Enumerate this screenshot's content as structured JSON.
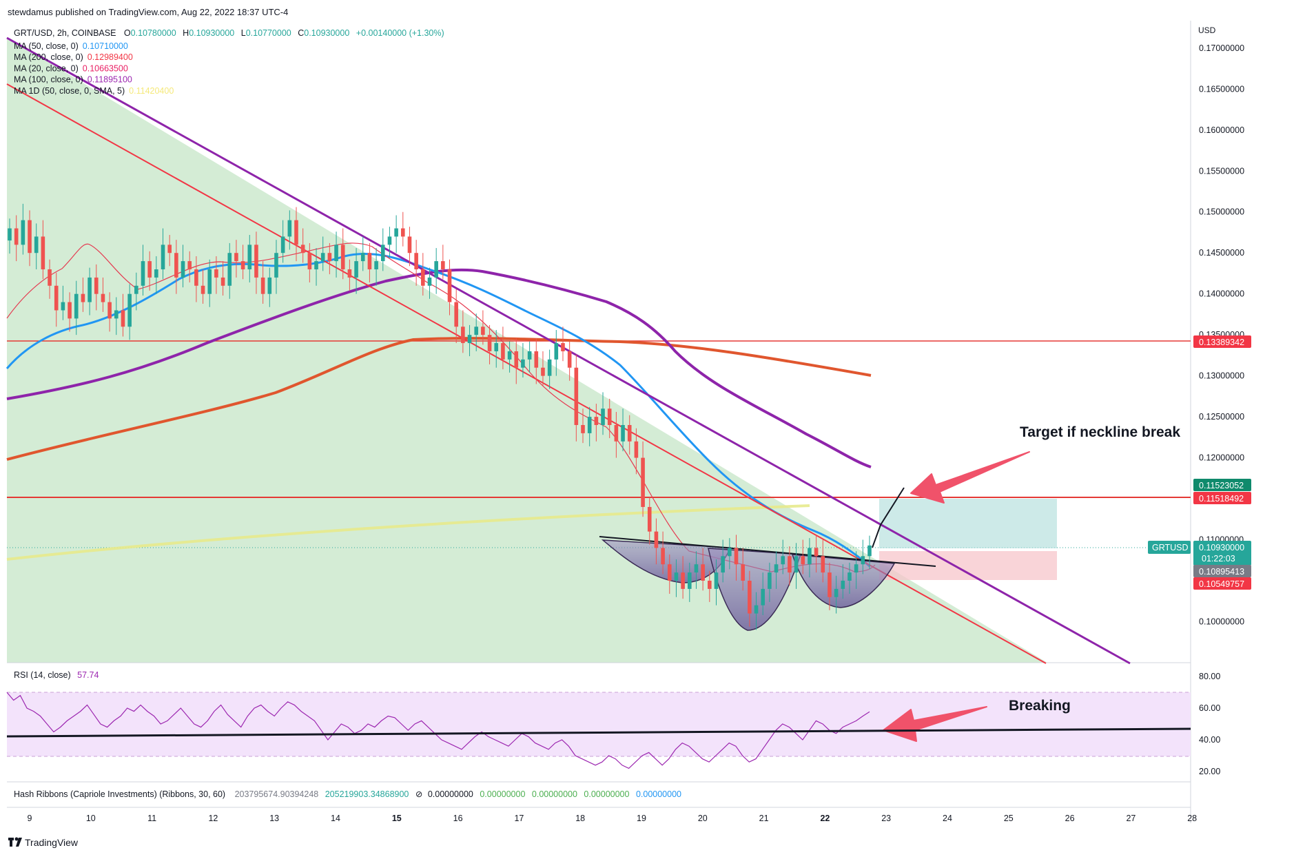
{
  "header": {
    "published": "stewdamus published on TradingView.com, Aug 22, 2022 18:37 UTC-4"
  },
  "symbol_line": {
    "symbol": "GRT/USD, 2h, COINBASE",
    "o_label": "O",
    "o_value": "0.10780000",
    "h_label": "H",
    "h_value": "0.10930000",
    "l_label": "L",
    "l_value": "0.10770000",
    "c_label": "C",
    "c_value": "0.10930000",
    "change": "+0.00140000 (+1.30%)"
  },
  "indicators": [
    {
      "label": "MA (50, close, 0)",
      "value": "0.10710000",
      "color": "#2196f3"
    },
    {
      "label": "MA (200, close, 0)",
      "value": "0.12989400",
      "color": "#f23645"
    },
    {
      "label": "MA (20, close, 0)",
      "value": "0.10663500",
      "color": "#e91e63"
    },
    {
      "label": "MA (100, close, 0)",
      "value": "0.11895100",
      "color": "#9c27b0"
    },
    {
      "label": "MA 1D (50, close, 0, SMA, 5)",
      "value": "0.11420400",
      "color": "#f5e97a"
    }
  ],
  "annotations": {
    "target": "Target if neckline break",
    "breaking": "Breaking"
  },
  "price_axis": {
    "currency": "USD",
    "labels": [
      "0.17000000",
      "0.16500000",
      "0.16000000",
      "0.15500000",
      "0.15000000",
      "0.14500000",
      "0.14000000",
      "0.13500000",
      "0.13000000",
      "0.12500000",
      "0.12000000",
      "0.11000000",
      "0.10000000"
    ]
  },
  "price_badges": {
    "line1": "0.13389342",
    "target": "0.11523052",
    "line2": "0.11518492",
    "symbol": "GRTUSD",
    "last": "0.10930000",
    "countdown": "01:22:03",
    "ma": "0.10895413",
    "stop": "0.10549757"
  },
  "rsi": {
    "label": "RSI (14, close)",
    "value": "57.74",
    "axis": [
      "80.00",
      "60.00",
      "40.00",
      "20.00"
    ]
  },
  "hash": {
    "label": "Hash Ribbons (Capriole Investments) (Ribbons, 30, 60)",
    "v1": "203795674.90394248",
    "v2": "205219903.34868900",
    "v3": "0.00000000",
    "v4": "0.00000000",
    "v5": "0.00000000",
    "v6": "0.00000000",
    "v7": "0.00000000"
  },
  "time_axis": [
    "9",
    "10",
    "11",
    "12",
    "13",
    "14",
    "15",
    "16",
    "17",
    "18",
    "19",
    "20",
    "21",
    "22",
    "23",
    "24",
    "25",
    "26",
    "27",
    "28"
  ],
  "footer": {
    "brand": "TradingView"
  },
  "colors": {
    "up": "#26a69a",
    "down": "#ef5350",
    "ma50": "#2196f3",
    "ma200": "#e0562e",
    "ma20": "#e53950",
    "ma100": "#8e24aa",
    "ma1d": "#e6e88a",
    "trendRed": "#f23645",
    "zone": "#d2ebd3",
    "rsi": "#9c27b0",
    "arrow": "#f0526a"
  },
  "chart_data": {
    "type": "candlestick",
    "symbol": "GRT/USD",
    "interval": "2h",
    "ylim": [
      0.0955,
      0.1715
    ],
    "xlim": [
      "Aug 9",
      "Aug 28"
    ],
    "last_close": 0.1093,
    "horizontal_levels": [
      0.13389342,
      0.11518492
    ],
    "closes": [
      0.148,
      0.146,
      0.149,
      0.145,
      0.147,
      0.143,
      0.141,
      0.138,
      0.139,
      0.137,
      0.14,
      0.139,
      0.142,
      0.14,
      0.139,
      0.137,
      0.138,
      0.136,
      0.14,
      0.141,
      0.144,
      0.142,
      0.143,
      0.146,
      0.145,
      0.142,
      0.144,
      0.143,
      0.141,
      0.14,
      0.143,
      0.142,
      0.141,
      0.145,
      0.144,
      0.143,
      0.146,
      0.142,
      0.14,
      0.142,
      0.145,
      0.147,
      0.149,
      0.146,
      0.145,
      0.143,
      0.144,
      0.145,
      0.144,
      0.146,
      0.143,
      0.142,
      0.144,
      0.145,
      0.143,
      0.144,
      0.146,
      0.147,
      0.148,
      0.147,
      0.145,
      0.143,
      0.141,
      0.142,
      0.144,
      0.143,
      0.139,
      0.136,
      0.134,
      0.135,
      0.136,
      0.135,
      0.133,
      0.134,
      0.132,
      0.133,
      0.131,
      0.132,
      0.133,
      0.131,
      0.13,
      0.132,
      0.134,
      0.133,
      0.131,
      0.124,
      0.123,
      0.125,
      0.124,
      0.126,
      0.124,
      0.122,
      0.124,
      0.122,
      0.12,
      0.114,
      0.111,
      0.109,
      0.107,
      0.105,
      0.106,
      0.104,
      0.106,
      0.107,
      0.105,
      0.104,
      0.106,
      0.108,
      0.109,
      0.107,
      0.105,
      0.101,
      0.102,
      0.104,
      0.106,
      0.107,
      0.108,
      0.106,
      0.108,
      0.107,
      0.109,
      0.108,
      0.106,
      0.103,
      0.104,
      0.105,
      0.106,
      0.107,
      0.108,
      0.1093
    ],
    "rsi_values": [
      70,
      65,
      68,
      60,
      58,
      55,
      50,
      45,
      48,
      52,
      55,
      58,
      62,
      56,
      50,
      48,
      52,
      55,
      60,
      58,
      62,
      58,
      55,
      50,
      52,
      56,
      60,
      55,
      50,
      48,
      52,
      58,
      62,
      56,
      52,
      48,
      55,
      60,
      62,
      58,
      55,
      60,
      64,
      62,
      58,
      55,
      52,
      46,
      40,
      45,
      50,
      48,
      44,
      46,
      50,
      48,
      52,
      55,
      54,
      50,
      46,
      50,
      52,
      48,
      44,
      40,
      38,
      36,
      34,
      38,
      42,
      45,
      42,
      40,
      38,
      36,
      40,
      44,
      42,
      38,
      36,
      34,
      38,
      40,
      36,
      30,
      28,
      26,
      24,
      26,
      30,
      28,
      24,
      22,
      26,
      30,
      32,
      28,
      24,
      28,
      34,
      38,
      36,
      32,
      28,
      26,
      30,
      34,
      38,
      36,
      30,
      26,
      28,
      34,
      40,
      46,
      50,
      48,
      44,
      40,
      46,
      52,
      50,
      46,
      44,
      48,
      50,
      52,
      55,
      57.74
    ]
  }
}
